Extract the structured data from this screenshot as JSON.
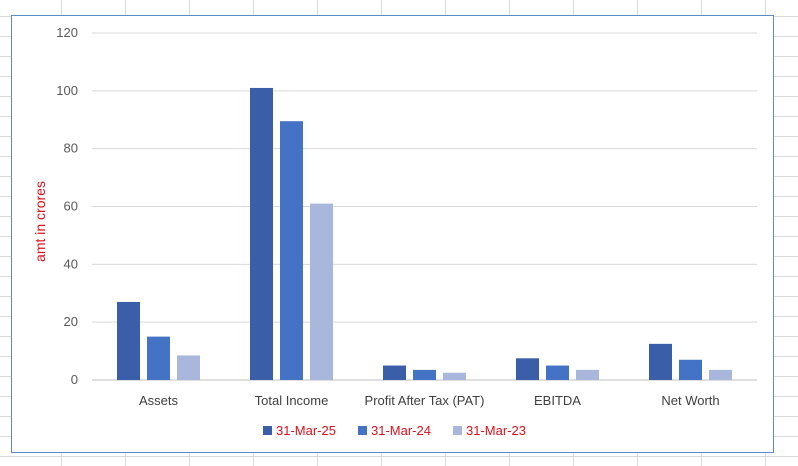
{
  "chart_data": {
    "type": "bar",
    "title": "",
    "xlabel": "",
    "ylabel": "amt in crores",
    "ylabel_color": "#e0101a",
    "ylim": [
      0,
      120
    ],
    "yticks": [
      0,
      20,
      40,
      60,
      80,
      100,
      120
    ],
    "grid": true,
    "legend": "bottom",
    "legend_text_color": "#e0101a",
    "categories": [
      "Assets",
      "Total Income",
      "Profit After Tax (PAT)",
      "EBITDA",
      "Net Worth"
    ],
    "series": [
      {
        "name": "31-Mar-25",
        "color": "#3a5ea8",
        "values": [
          27,
          101,
          5,
          7.5,
          12.5
        ]
      },
      {
        "name": "31-Mar-24",
        "color": "#4472c4",
        "values": [
          15,
          89.5,
          3.5,
          5,
          7
        ]
      },
      {
        "name": "31-Mar-23",
        "color": "#a9b7dc",
        "values": [
          8.5,
          61,
          2.5,
          3.5,
          3.5
        ]
      }
    ]
  }
}
